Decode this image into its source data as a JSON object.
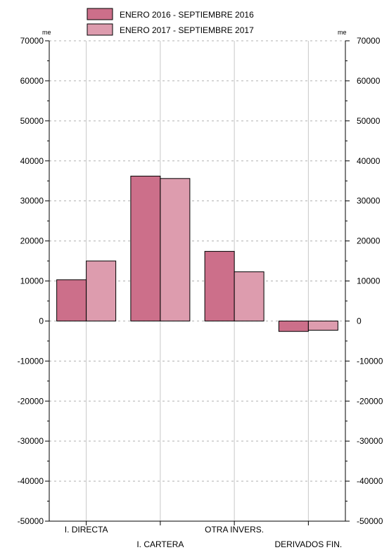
{
  "chart_data": {
    "type": "bar",
    "categories": [
      "I. DIRECTA",
      "I. CARTERA",
      "OTRA INVERS.",
      "DERIVADOS FIN."
    ],
    "series": [
      {
        "name": "ENERO 2016 - SEPTIEMBRE 2016",
        "values": [
          10300,
          36200,
          17400,
          -2600
        ],
        "color": "#cc6f8a"
      },
      {
        "name": "ENERO 2017 - SEPTIEMBRE 2017",
        "values": [
          15000,
          35600,
          12300,
          -2300
        ],
        "color": "#dd9cae"
      }
    ],
    "ylim": [
      -50000,
      70000
    ],
    "yticks": [
      70000,
      60000,
      50000,
      40000,
      30000,
      20000,
      10000,
      0,
      -10000,
      -20000,
      -30000,
      -40000,
      -50000
    ],
    "unit_left": "me",
    "unit_right": "me",
    "grid": true,
    "legend_position": "top-center"
  }
}
